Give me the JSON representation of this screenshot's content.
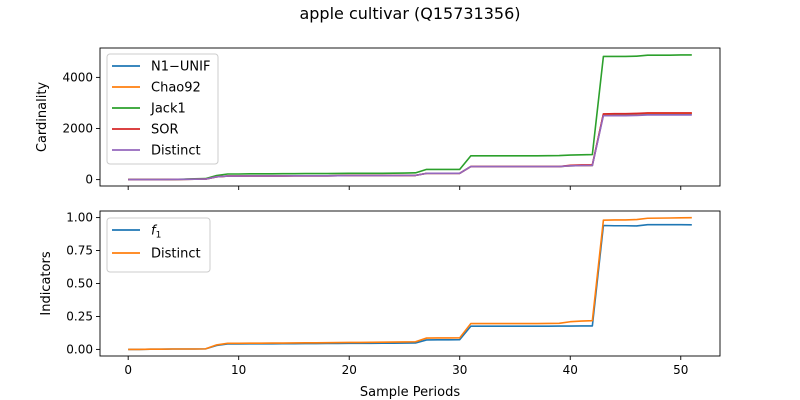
{
  "figure": {
    "title": "apple cultivar (Q15731356)",
    "xlabel": "Sample Periods"
  },
  "chart_data": [
    {
      "type": "line",
      "ylabel": "Cardinality",
      "xlim": [
        -2.55,
        53.55
      ],
      "ylim": [
        -250,
        5150
      ],
      "xticks": [
        0,
        10,
        20,
        30,
        40,
        50
      ],
      "yticks": [
        0,
        2000,
        4000
      ],
      "legend": "upper left",
      "grid": false,
      "x": [
        0,
        1,
        2,
        3,
        4,
        5,
        6,
        7,
        8,
        9,
        10,
        11,
        12,
        13,
        14,
        15,
        16,
        17,
        18,
        19,
        20,
        21,
        22,
        23,
        24,
        25,
        26,
        27,
        28,
        29,
        30,
        31,
        32,
        33,
        34,
        35,
        36,
        37,
        38,
        39,
        40,
        41,
        42,
        43,
        44,
        45,
        46,
        47,
        48,
        49,
        50,
        51
      ],
      "series": [
        {
          "name": "N1−UNIF",
          "color": "#1f77b4",
          "values": [
            0,
            0,
            0,
            0,
            5,
            10,
            15,
            20,
            110,
            140,
            140,
            145,
            145,
            145,
            145,
            150,
            150,
            150,
            150,
            155,
            160,
            160,
            160,
            160,
            160,
            165,
            165,
            245,
            245,
            245,
            245,
            510,
            510,
            510,
            510,
            510,
            510,
            510,
            510,
            510,
            540,
            550,
            555,
            2550,
            2550,
            2550,
            2560,
            2580,
            2580,
            2580,
            2580,
            2580
          ]
        },
        {
          "name": "Chao92",
          "color": "#ff7f0e",
          "values": [
            0,
            0,
            0,
            0,
            5,
            10,
            15,
            20,
            110,
            140,
            140,
            145,
            145,
            145,
            145,
            150,
            150,
            150,
            150,
            155,
            160,
            160,
            160,
            160,
            160,
            165,
            165,
            245,
            245,
            245,
            245,
            510,
            510,
            510,
            510,
            510,
            510,
            510,
            510,
            510,
            540,
            550,
            555,
            2560,
            2570,
            2570,
            2580,
            2600,
            2600,
            2600,
            2600,
            2600
          ]
        },
        {
          "name": "Jack1",
          "color": "#2ca02c",
          "values": [
            0,
            0,
            0,
            0,
            5,
            15,
            30,
            40,
            160,
            220,
            220,
            225,
            225,
            225,
            230,
            230,
            235,
            235,
            235,
            240,
            245,
            245,
            245,
            245,
            250,
            255,
            265,
            400,
            400,
            400,
            400,
            930,
            930,
            930,
            930,
            930,
            930,
            930,
            935,
            940,
            960,
            970,
            980,
            4820,
            4820,
            4820,
            4830,
            4870,
            4870,
            4870,
            4880,
            4880
          ]
        },
        {
          "name": "SOR",
          "color": "#d62728",
          "values": [
            0,
            0,
            0,
            0,
            5,
            10,
            15,
            20,
            110,
            140,
            140,
            145,
            145,
            145,
            145,
            150,
            150,
            150,
            150,
            155,
            160,
            160,
            160,
            160,
            160,
            165,
            165,
            245,
            245,
            245,
            245,
            510,
            510,
            510,
            510,
            510,
            510,
            510,
            510,
            510,
            560,
            575,
            580,
            2570,
            2580,
            2580,
            2590,
            2610,
            2610,
            2610,
            2610,
            2610
          ]
        },
        {
          "name": "Distinct",
          "color": "#9467bd",
          "values": [
            0,
            0,
            0,
            0,
            5,
            10,
            15,
            20,
            110,
            140,
            140,
            145,
            145,
            145,
            145,
            150,
            150,
            150,
            150,
            155,
            160,
            160,
            160,
            160,
            160,
            165,
            165,
            245,
            245,
            245,
            245,
            510,
            510,
            510,
            510,
            510,
            510,
            510,
            510,
            510,
            540,
            550,
            555,
            2500,
            2500,
            2500,
            2510,
            2530,
            2530,
            2530,
            2530,
            2530
          ]
        }
      ]
    },
    {
      "type": "line",
      "ylabel": "Indicators",
      "xlim": [
        -2.55,
        53.55
      ],
      "ylim": [
        -0.05,
        1.05
      ],
      "xticks": [
        0,
        10,
        20,
        30,
        40,
        50
      ],
      "yticks": [
        0.0,
        0.25,
        0.5,
        0.75,
        1.0
      ],
      "legend": "upper left",
      "grid": false,
      "x": [
        0,
        1,
        2,
        3,
        4,
        5,
        6,
        7,
        8,
        9,
        10,
        11,
        12,
        13,
        14,
        15,
        16,
        17,
        18,
        19,
        20,
        21,
        22,
        23,
        24,
        25,
        26,
        27,
        28,
        29,
        30,
        31,
        32,
        33,
        34,
        35,
        36,
        37,
        38,
        39,
        40,
        41,
        42,
        43,
        44,
        45,
        46,
        47,
        48,
        49,
        50,
        51
      ],
      "series": [
        {
          "name": "f1",
          "color": "#1f77b4",
          "values": [
            0.0,
            0.0,
            0.002,
            0.002,
            0.003,
            0.003,
            0.003,
            0.004,
            0.03,
            0.041,
            0.041,
            0.042,
            0.042,
            0.042,
            0.043,
            0.043,
            0.044,
            0.044,
            0.045,
            0.045,
            0.046,
            0.046,
            0.046,
            0.047,
            0.047,
            0.048,
            0.049,
            0.072,
            0.073,
            0.073,
            0.074,
            0.176,
            0.176,
            0.176,
            0.176,
            0.176,
            0.176,
            0.176,
            0.176,
            0.177,
            0.177,
            0.178,
            0.178,
            0.94,
            0.938,
            0.938,
            0.937,
            0.946,
            0.946,
            0.946,
            0.946,
            0.945
          ]
        },
        {
          "name": "Distinct",
          "color": "#ff7f0e",
          "values": [
            0.0,
            0.0,
            0.002,
            0.002,
            0.003,
            0.003,
            0.003,
            0.004,
            0.034,
            0.046,
            0.046,
            0.047,
            0.047,
            0.048,
            0.048,
            0.049,
            0.05,
            0.05,
            0.051,
            0.052,
            0.053,
            0.053,
            0.054,
            0.055,
            0.056,
            0.057,
            0.058,
            0.086,
            0.087,
            0.087,
            0.088,
            0.196,
            0.196,
            0.196,
            0.196,
            0.196,
            0.196,
            0.196,
            0.197,
            0.198,
            0.21,
            0.215,
            0.218,
            0.98,
            0.982,
            0.982,
            0.985,
            0.995,
            0.996,
            0.997,
            0.998,
            0.999
          ]
        }
      ]
    }
  ]
}
